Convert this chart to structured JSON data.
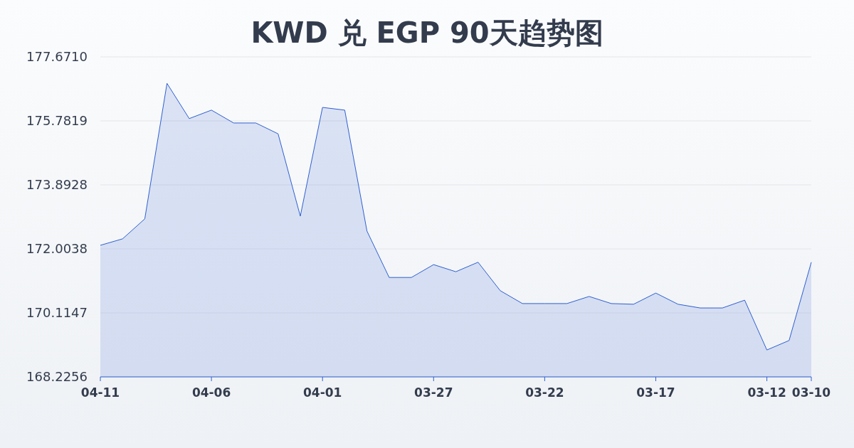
{
  "chart_data": {
    "type": "area",
    "title": "KWD 兑 EGP 90天趋势图",
    "categories": [
      "04-11",
      null,
      null,
      null,
      null,
      "04-06",
      null,
      null,
      null,
      null,
      "04-01",
      null,
      null,
      null,
      null,
      "03-27",
      null,
      null,
      null,
      null,
      "03-22",
      null,
      null,
      null,
      null,
      "03-17",
      null,
      null,
      null,
      null,
      "03-12",
      null,
      "03-10"
    ],
    "series": [
      {
        "color": "#2f5fd0",
        "values": [
          172.11,
          172.3,
          172.89,
          176.89,
          175.85,
          176.1,
          175.72,
          175.72,
          175.4,
          172.97,
          176.18,
          176.1,
          172.53,
          171.16,
          171.16,
          171.54,
          171.33,
          171.61,
          170.77,
          170.39,
          170.39,
          170.39,
          170.6,
          170.39,
          170.37,
          170.7,
          170.37,
          170.26,
          170.26,
          170.49,
          169.02,
          169.3,
          171.61
        ]
      }
    ],
    "ylim": [
      168.2256,
      177.671
    ],
    "yticks": [
      {
        "value": 168.2256,
        "label": "168.2256"
      },
      {
        "value": 170.1147,
        "label": "170.1147"
      },
      {
        "value": 172.0038,
        "label": "172.0038"
      },
      {
        "value": 173.8928,
        "label": "173.8928"
      },
      {
        "value": 175.7819,
        "label": "175.7819"
      },
      {
        "value": 177.671,
        "label": "177.6710"
      }
    ],
    "grid": "y"
  }
}
